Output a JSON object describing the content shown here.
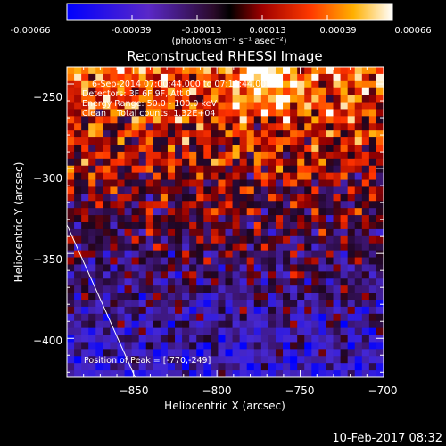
{
  "colorbar": {
    "ticks": [
      "-0.00066",
      "-0.00039",
      "-0.00013",
      "0.00013",
      "0.00039",
      "0.00066"
    ],
    "unit_label": "(photons cm⁻² s⁻¹ asec⁻²)"
  },
  "chart_data": {
    "type": "heatmap",
    "title": "Reconstructed RHESSI Image",
    "xlabel": "Heliocentric X (arcsec)",
    "ylabel": "Heliocentric Y (arcsec)",
    "xlim": [
      -890,
      -700
    ],
    "ylim": [
      -423,
      -240
    ],
    "x_ticks": [
      -850,
      -800,
      -750,
      -700
    ],
    "y_ticks": [
      -250,
      -300,
      -350,
      -400
    ],
    "x_tick_labels": [
      "−850",
      "−800",
      "−750",
      "−700"
    ],
    "y_tick_labels": [
      "−250",
      "−300",
      "−350",
      "−400"
    ],
    "value_range": [
      -0.00066,
      0.00066
    ],
    "peak": [
      -770,
      -249
    ],
    "limb_line": {
      "x": [
        -890,
        -849
      ],
      "y": [
        -333,
        -423
      ]
    }
  },
  "annotations": {
    "time_range": "6-Sep-2014 07:00:44.000 to 07:10:44.000",
    "detectors": "Detectors: 3F 6F 9F, Att 0",
    "energy_range": "Energy Range: 50.0 - 100.0 keV",
    "clean_counts": "Clean    Total counts: 1.32E+04",
    "peak_position": "Position of Peak = [-770,-249]"
  },
  "timestamp": "10-Feb-2017 08:32"
}
